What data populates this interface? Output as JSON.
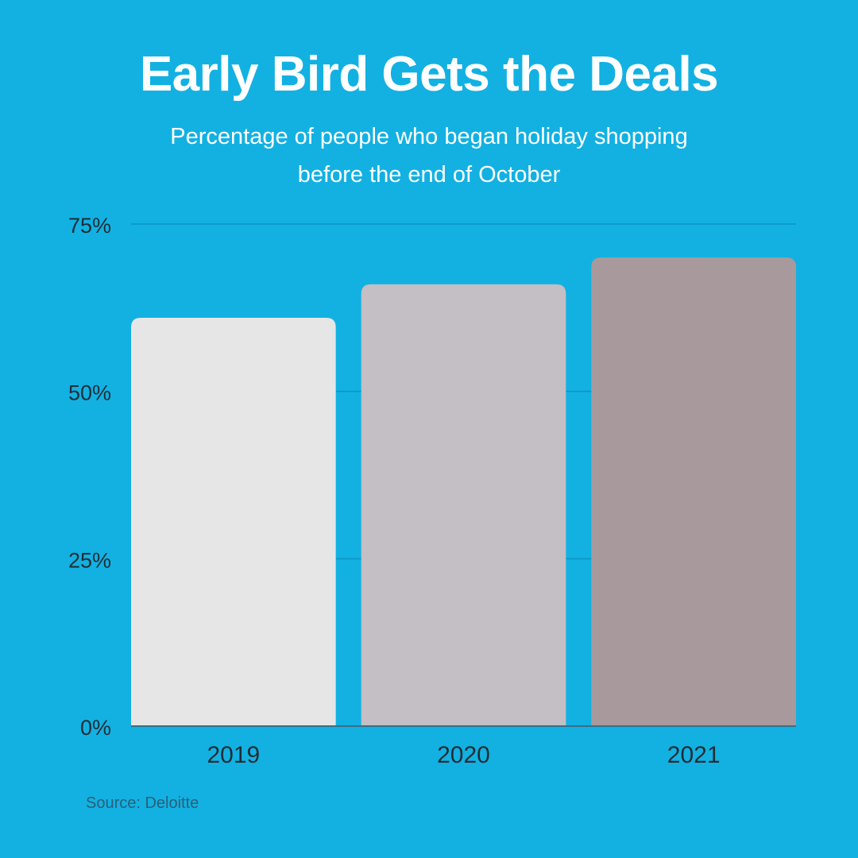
{
  "title": "Early Bird Gets the Deals",
  "subtitle": {
    "line1": "Percentage of people who began holiday shopping",
    "line2": "before the end of October"
  },
  "source": "Source: Deloitte",
  "colors": {
    "background": "#12B1E2",
    "gridline": "#0B94C4",
    "axis": "#3A6E85",
    "bar_2019": "#E6E6E6",
    "bar_2020": "#C4BEC5",
    "bar_2021": "#A89A9C"
  },
  "chart_data": {
    "type": "bar",
    "title": "Early Bird Gets the Deals",
    "subtitle": "Percentage of people who began holiday shopping before the end of October",
    "categories": [
      "2019",
      "2020",
      "2021"
    ],
    "values": [
      61,
      66,
      70
    ],
    "ylim": [
      0,
      75
    ],
    "yticks": [
      0,
      25,
      50,
      75
    ],
    "ytick_labels": [
      "0%",
      "25%",
      "50%",
      "75%"
    ],
    "grid": true,
    "legend": "none"
  }
}
